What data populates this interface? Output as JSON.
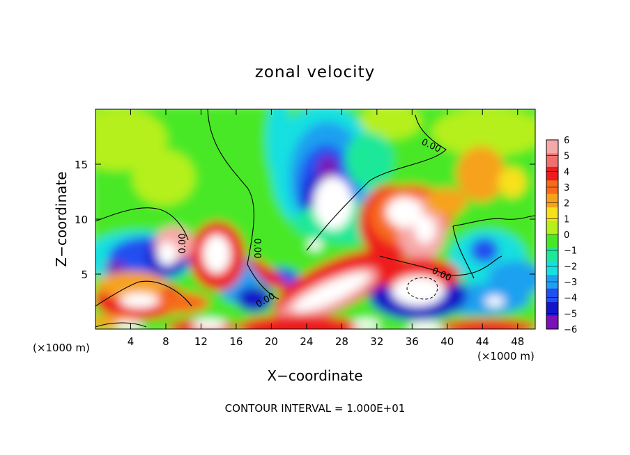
{
  "chart_data": {
    "type": "heatmap",
    "title": "zonal velocity",
    "xlabel": "X−coordinate",
    "ylabel": "Z−coordinate",
    "x_unit_left": "(×1000 m)",
    "x_unit_right": "(×1000 m)",
    "footer": "CONTOUR INTERVAL = 1.000E+01",
    "xlim": [
      0,
      50
    ],
    "ylim": [
      0,
      20
    ],
    "x_ticks": [
      4,
      8,
      12,
      16,
      20,
      24,
      28,
      32,
      36,
      40,
      44,
      48
    ],
    "y_ticks": [
      5,
      10,
      15
    ],
    "colorbar": {
      "min": -6,
      "max": 6,
      "labels": [
        "6",
        "5",
        "4",
        "3",
        "2",
        "1",
        "0",
        "−1",
        "−2",
        "−3",
        "−4",
        "−5",
        "−6"
      ],
      "colors": [
        "#f7a8a8",
        "#f07070",
        "#ee1c1c",
        "#f76a1a",
        "#f7a21a",
        "#f7e11a",
        "#b5f01a",
        "#48e828",
        "#1ee89a",
        "#18e0e0",
        "#1ea0f0",
        "#2050f0",
        "#1414c8",
        "#7a12b8"
      ]
    },
    "contour_label": "0.00",
    "grid": false,
    "legend_position": "right"
  }
}
